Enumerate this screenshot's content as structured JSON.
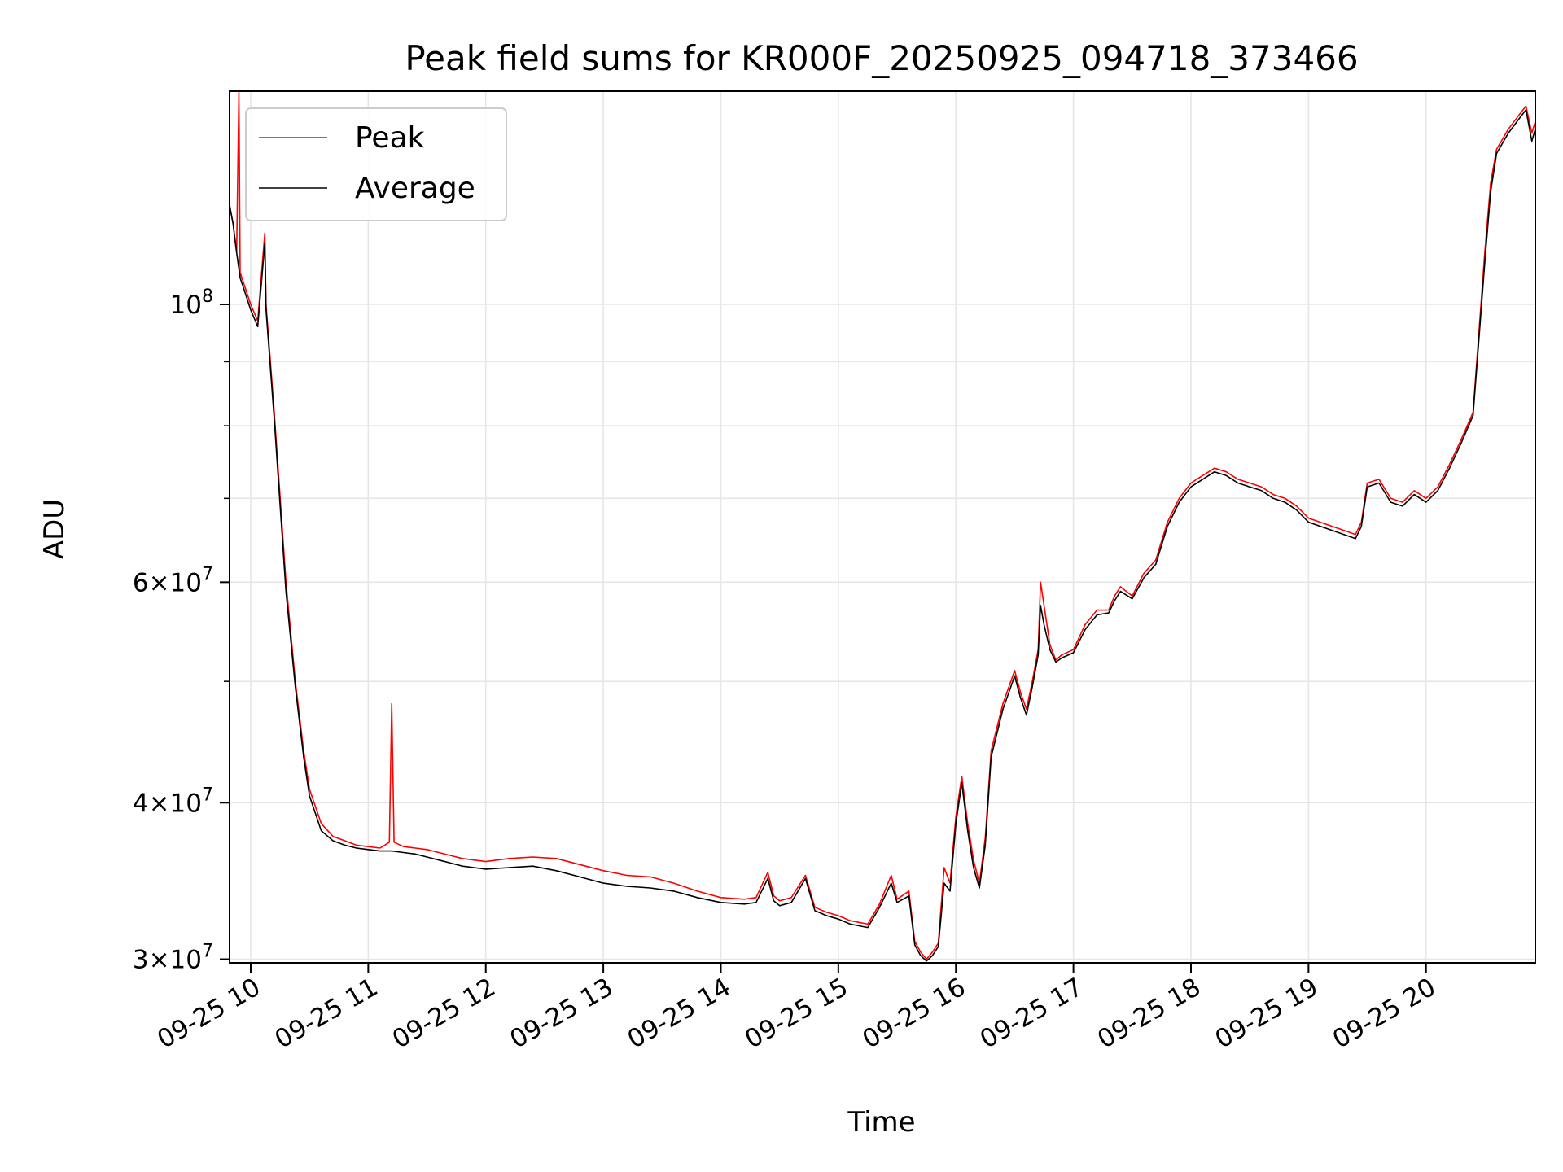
{
  "chart_data": {
    "type": "line",
    "title": "Peak field sums for KR000F_20250925_094718_373466",
    "xlabel": "Time",
    "ylabel": "ADU",
    "yscale": "log",
    "ylim": [
      29800000,
      148000000
    ],
    "xlim": [
      9.82,
      20.93
    ],
    "grid": true,
    "legend_position": "top-left",
    "x_ticks": [
      {
        "value": 10,
        "label": "09-25 10"
      },
      {
        "value": 11,
        "label": "09-25 11"
      },
      {
        "value": 12,
        "label": "09-25 12"
      },
      {
        "value": 13,
        "label": "09-25 13"
      },
      {
        "value": 14,
        "label": "09-25 14"
      },
      {
        "value": 15,
        "label": "09-25 15"
      },
      {
        "value": 16,
        "label": "09-25 16"
      },
      {
        "value": 17,
        "label": "09-25 17"
      },
      {
        "value": 18,
        "label": "09-25 18"
      },
      {
        "value": 19,
        "label": "09-25 19"
      },
      {
        "value": 20,
        "label": "09-25 20"
      }
    ],
    "y_ticks": [
      {
        "value": 30000000,
        "mantissa": "3",
        "exp": "7"
      },
      {
        "value": 40000000,
        "mantissa": "4",
        "exp": "7"
      },
      {
        "value": 60000000,
        "mantissa": "6",
        "exp": "7"
      },
      {
        "value": 100000000,
        "mantissa": "",
        "exp": "8"
      }
    ],
    "y_minor_ticks": [
      50000000,
      70000000,
      80000000,
      90000000
    ],
    "series": [
      {
        "name": "Peak",
        "color": "#ff0000",
        "points": [
          [
            9.82,
            120000000
          ],
          [
            9.85,
            116000000
          ],
          [
            9.88,
            110000000
          ],
          [
            9.9,
            148000000
          ],
          [
            9.91,
            106000000
          ],
          [
            9.94,
            104000000
          ],
          [
            10.0,
            100000000
          ],
          [
            10.06,
            97000000
          ],
          [
            10.12,
            114000000
          ],
          [
            10.13,
            100000000
          ],
          [
            10.2,
            82000000
          ],
          [
            10.3,
            60000000
          ],
          [
            10.38,
            50000000
          ],
          [
            10.45,
            44000000
          ],
          [
            10.5,
            41000000
          ],
          [
            10.6,
            38500000
          ],
          [
            10.7,
            37600000
          ],
          [
            10.8,
            37300000
          ],
          [
            10.9,
            37000000
          ],
          [
            11.0,
            36900000
          ],
          [
            11.1,
            36800000
          ],
          [
            11.18,
            37200000
          ],
          [
            11.2,
            48000000
          ],
          [
            11.22,
            37200000
          ],
          [
            11.3,
            36900000
          ],
          [
            11.4,
            36800000
          ],
          [
            11.5,
            36700000
          ],
          [
            11.6,
            36500000
          ],
          [
            11.7,
            36300000
          ],
          [
            11.8,
            36100000
          ],
          [
            11.9,
            36000000
          ],
          [
            12.0,
            35900000
          ],
          [
            12.2,
            36100000
          ],
          [
            12.4,
            36200000
          ],
          [
            12.6,
            36100000
          ],
          [
            12.8,
            35700000
          ],
          [
            13.0,
            35300000
          ],
          [
            13.2,
            35000000
          ],
          [
            13.4,
            34900000
          ],
          [
            13.6,
            34500000
          ],
          [
            13.8,
            34000000
          ],
          [
            14.0,
            33600000
          ],
          [
            14.2,
            33500000
          ],
          [
            14.3,
            33600000
          ],
          [
            14.4,
            35200000
          ],
          [
            14.45,
            33700000
          ],
          [
            14.5,
            33400000
          ],
          [
            14.6,
            33600000
          ],
          [
            14.72,
            35000000
          ],
          [
            14.8,
            33000000
          ],
          [
            14.9,
            32700000
          ],
          [
            15.0,
            32500000
          ],
          [
            15.1,
            32200000
          ],
          [
            15.25,
            32000000
          ],
          [
            15.35,
            33200000
          ],
          [
            15.45,
            35000000
          ],
          [
            15.5,
            33500000
          ],
          [
            15.6,
            34000000
          ],
          [
            15.65,
            31000000
          ],
          [
            15.7,
            30400000
          ],
          [
            15.75,
            30000000
          ],
          [
            15.8,
            30400000
          ],
          [
            15.85,
            30900000
          ],
          [
            15.9,
            35500000
          ],
          [
            15.95,
            34500000
          ],
          [
            16.0,
            39000000
          ],
          [
            16.05,
            42000000
          ],
          [
            16.1,
            38500000
          ],
          [
            16.15,
            36000000
          ],
          [
            16.2,
            34500000
          ],
          [
            16.25,
            37500000
          ],
          [
            16.3,
            44000000
          ],
          [
            16.4,
            48000000
          ],
          [
            16.5,
            51000000
          ],
          [
            16.55,
            49000000
          ],
          [
            16.6,
            47500000
          ],
          [
            16.65,
            50000000
          ],
          [
            16.7,
            53000000
          ],
          [
            16.72,
            60000000
          ],
          [
            16.75,
            57500000
          ],
          [
            16.8,
            53500000
          ],
          [
            16.85,
            52000000
          ],
          [
            16.9,
            52500000
          ],
          [
            17.0,
            53000000
          ],
          [
            17.1,
            55500000
          ],
          [
            17.2,
            57000000
          ],
          [
            17.3,
            57000000
          ],
          [
            17.35,
            58500000
          ],
          [
            17.4,
            59500000
          ],
          [
            17.5,
            58500000
          ],
          [
            17.6,
            61000000
          ],
          [
            17.7,
            62500000
          ],
          [
            17.8,
            67000000
          ],
          [
            17.9,
            70000000
          ],
          [
            18.0,
            72000000
          ],
          [
            18.1,
            73000000
          ],
          [
            18.2,
            74000000
          ],
          [
            18.3,
            73500000
          ],
          [
            18.4,
            72500000
          ],
          [
            18.5,
            72000000
          ],
          [
            18.6,
            71500000
          ],
          [
            18.7,
            70500000
          ],
          [
            18.8,
            70000000
          ],
          [
            18.9,
            69000000
          ],
          [
            19.0,
            67500000
          ],
          [
            19.1,
            67000000
          ],
          [
            19.2,
            66500000
          ],
          [
            19.3,
            66000000
          ],
          [
            19.4,
            65500000
          ],
          [
            19.45,
            67000000
          ],
          [
            19.5,
            72000000
          ],
          [
            19.6,
            72500000
          ],
          [
            19.7,
            70000000
          ],
          [
            19.8,
            69500000
          ],
          [
            19.9,
            71000000
          ],
          [
            20.0,
            70000000
          ],
          [
            20.1,
            71500000
          ],
          [
            20.2,
            74500000
          ],
          [
            20.3,
            78000000
          ],
          [
            20.4,
            82000000
          ],
          [
            20.5,
            110000000
          ],
          [
            20.55,
            125000000
          ],
          [
            20.6,
            133000000
          ],
          [
            20.7,
            138000000
          ],
          [
            20.8,
            142000000
          ],
          [
            20.85,
            144000000
          ],
          [
            20.9,
            137000000
          ],
          [
            20.93,
            140000000
          ]
        ]
      },
      {
        "name": "Average",
        "color": "#000000",
        "points": [
          [
            9.82,
            120000000
          ],
          [
            9.85,
            116000000
          ],
          [
            9.88,
            110000000
          ],
          [
            9.91,
            105000000
          ],
          [
            9.94,
            103000000
          ],
          [
            10.0,
            99000000
          ],
          [
            10.06,
            96000000
          ],
          [
            10.12,
            112000000
          ],
          [
            10.13,
            99000000
          ],
          [
            10.2,
            81000000
          ],
          [
            10.3,
            59000000
          ],
          [
            10.38,
            49500000
          ],
          [
            10.45,
            43500000
          ],
          [
            10.5,
            40500000
          ],
          [
            10.6,
            38000000
          ],
          [
            10.7,
            37300000
          ],
          [
            10.8,
            37000000
          ],
          [
            10.9,
            36800000
          ],
          [
            11.0,
            36700000
          ],
          [
            11.1,
            36600000
          ],
          [
            11.2,
            36600000
          ],
          [
            11.3,
            36500000
          ],
          [
            11.4,
            36400000
          ],
          [
            11.5,
            36200000
          ],
          [
            11.6,
            36000000
          ],
          [
            11.7,
            35800000
          ],
          [
            11.8,
            35600000
          ],
          [
            11.9,
            35500000
          ],
          [
            12.0,
            35400000
          ],
          [
            12.2,
            35500000
          ],
          [
            12.4,
            35600000
          ],
          [
            12.6,
            35300000
          ],
          [
            12.8,
            34900000
          ],
          [
            13.0,
            34500000
          ],
          [
            13.2,
            34300000
          ],
          [
            13.4,
            34200000
          ],
          [
            13.6,
            34000000
          ],
          [
            13.8,
            33600000
          ],
          [
            14.0,
            33300000
          ],
          [
            14.2,
            33200000
          ],
          [
            14.3,
            33300000
          ],
          [
            14.4,
            34800000
          ],
          [
            14.45,
            33400000
          ],
          [
            14.5,
            33100000
          ],
          [
            14.6,
            33300000
          ],
          [
            14.72,
            34800000
          ],
          [
            14.8,
            32800000
          ],
          [
            14.9,
            32500000
          ],
          [
            15.0,
            32300000
          ],
          [
            15.1,
            32000000
          ],
          [
            15.25,
            31800000
          ],
          [
            15.35,
            33000000
          ],
          [
            15.45,
            34500000
          ],
          [
            15.5,
            33300000
          ],
          [
            15.6,
            33700000
          ],
          [
            15.65,
            30800000
          ],
          [
            15.7,
            30200000
          ],
          [
            15.75,
            29900000
          ],
          [
            15.8,
            30200000
          ],
          [
            15.85,
            30700000
          ],
          [
            15.9,
            34500000
          ],
          [
            15.95,
            34000000
          ],
          [
            16.0,
            38500000
          ],
          [
            16.05,
            41500000
          ],
          [
            16.1,
            38000000
          ],
          [
            16.15,
            35500000
          ],
          [
            16.2,
            34200000
          ],
          [
            16.25,
            37000000
          ],
          [
            16.3,
            43500000
          ],
          [
            16.4,
            47500000
          ],
          [
            16.5,
            50500000
          ],
          [
            16.55,
            48500000
          ],
          [
            16.6,
            47000000
          ],
          [
            16.65,
            49500000
          ],
          [
            16.7,
            52500000
          ],
          [
            16.72,
            57500000
          ],
          [
            16.75,
            55500000
          ],
          [
            16.8,
            53000000
          ],
          [
            16.85,
            51800000
          ],
          [
            16.9,
            52200000
          ],
          [
            17.0,
            52700000
          ],
          [
            17.1,
            55000000
          ],
          [
            17.2,
            56500000
          ],
          [
            17.3,
            56700000
          ],
          [
            17.35,
            58000000
          ],
          [
            17.4,
            59000000
          ],
          [
            17.5,
            58200000
          ],
          [
            17.6,
            60500000
          ],
          [
            17.7,
            62000000
          ],
          [
            17.8,
            66500000
          ],
          [
            17.9,
            69500000
          ],
          [
            18.0,
            71500000
          ],
          [
            18.1,
            72500000
          ],
          [
            18.2,
            73500000
          ],
          [
            18.3,
            73000000
          ],
          [
            18.4,
            72000000
          ],
          [
            18.5,
            71500000
          ],
          [
            18.6,
            71000000
          ],
          [
            18.7,
            70000000
          ],
          [
            18.8,
            69500000
          ],
          [
            18.9,
            68500000
          ],
          [
            19.0,
            67000000
          ],
          [
            19.1,
            66500000
          ],
          [
            19.2,
            66000000
          ],
          [
            19.3,
            65500000
          ],
          [
            19.4,
            65000000
          ],
          [
            19.45,
            66500000
          ],
          [
            19.5,
            71500000
          ],
          [
            19.6,
            72000000
          ],
          [
            19.7,
            69500000
          ],
          [
            19.8,
            69000000
          ],
          [
            19.9,
            70500000
          ],
          [
            20.0,
            69500000
          ],
          [
            20.1,
            71000000
          ],
          [
            20.2,
            74000000
          ],
          [
            20.3,
            77500000
          ],
          [
            20.4,
            81500000
          ],
          [
            20.5,
            108000000
          ],
          [
            20.55,
            123000000
          ],
          [
            20.6,
            132000000
          ],
          [
            20.7,
            137000000
          ],
          [
            20.8,
            141000000
          ],
          [
            20.85,
            143000000
          ],
          [
            20.9,
            135000000
          ],
          [
            20.93,
            138000000
          ]
        ]
      }
    ]
  }
}
